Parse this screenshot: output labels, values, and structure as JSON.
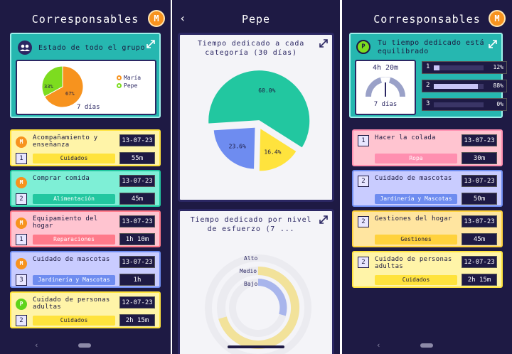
{
  "colors": {
    "background": "#1e1a44",
    "teal": "#26b7b0",
    "orange": "#f7931e",
    "green": "#7ddc1f",
    "yellow": "#fff4a8",
    "mint": "#7eefd6",
    "pink": "#ffc4d0",
    "lavender": "#c9ccff"
  },
  "screen1": {
    "title": "Corresponsables",
    "avatar": "M",
    "summary": {
      "header": "Estado de todo el grupo",
      "icon": "group-icon",
      "legend": [
        {
          "name": "María",
          "color": "#f7931e"
        },
        {
          "name": "Pepe",
          "color": "#7ddc1f"
        }
      ],
      "period": "7 días",
      "pie": {
        "type": "pie",
        "slices": [
          {
            "label": "María",
            "value": 67
          },
          {
            "label": "Pepe",
            "value": 33
          }
        ]
      },
      "slice_labels": [
        "33%",
        "67%"
      ]
    },
    "tasks": [
      {
        "who": "M",
        "who_color": "#f7931e",
        "name": "Acompañamiento y enseñanza",
        "date": "13-07-23",
        "count": "1",
        "category": "Cuidados",
        "cat_color": "#ffe33d",
        "cat_text": "#1c1a40",
        "duration": "55m",
        "bg": "#fff4a8",
        "border": "#ffe33d"
      },
      {
        "who": "M",
        "who_color": "#f7931e",
        "name": "Comprar comida",
        "date": "13-07-23",
        "count": "2",
        "category": "Alimentación",
        "cat_color": "#22c7a0",
        "cat_text": "#ffffff",
        "duration": "45m",
        "bg": "#7eefd6",
        "border": "#22c7a0"
      },
      {
        "who": "M",
        "who_color": "#f7931e",
        "name": "Equipamiento del hogar",
        "date": "13-07-23",
        "count": "1",
        "category": "Reparaciones",
        "cat_color": "#ff7a8a",
        "cat_text": "#ffffff",
        "duration": "1h 10m",
        "bg": "#ffc4d0",
        "border": "#ff7a8a"
      },
      {
        "who": "M",
        "who_color": "#f7931e",
        "name": "Cuidado de mascotas",
        "date": "13-07-23",
        "count": "3",
        "category": "Jardinería y Mascotas",
        "cat_color": "#6e8cf0",
        "cat_text": "#ffffff",
        "duration": "1h",
        "bg": "#c9ccff",
        "border": "#6e8cf0"
      },
      {
        "who": "P",
        "who_color": "#5fd41a",
        "name": "Cuidado de personas adultas",
        "date": "12-07-23",
        "count": "2",
        "category": "Cuidados",
        "cat_color": "#ffe33d",
        "cat_text": "#1c1a40",
        "duration": "2h 15m",
        "bg": "#fff4a8",
        "border": "#ffe33d"
      }
    ]
  },
  "screen2": {
    "title": "Pepe",
    "pie_title": "Tiempo dedicado a cada categoría (30 días)",
    "chart_data": [
      {
        "type": "pie",
        "title": "Tiempo dedicado a cada categoría (30 días)",
        "slices": [
          {
            "value": 60.0,
            "color": "#22c7a0",
            "label": "60.0%"
          },
          {
            "value": 16.4,
            "color": "#ffe33d",
            "label": "16.4%"
          },
          {
            "value": 23.6,
            "color": "#6e8cf0",
            "label": "23.6%"
          }
        ]
      },
      {
        "type": "radial-bar",
        "title": "Tiempo dedicado por nivel de esfuerzo (7 ...",
        "categories": [
          "Alto",
          "Medio",
          "Bajo"
        ]
      }
    ],
    "effort_title": "Tiempo dedicado por nivel de esfuerzo (7 ...",
    "effort_levels": [
      "Alto",
      "Medio",
      "Bajo"
    ]
  },
  "screen3": {
    "title": "Corresponsables",
    "avatar": "M",
    "balance": {
      "badge": "P",
      "header": "Tu tiempo dedicado está equilibrado",
      "time": "4h 20m",
      "period": "7 días",
      "levels": [
        {
          "num": "1",
          "pct": "12%",
          "value": 0.12
        },
        {
          "num": "2",
          "pct": "88%",
          "value": 0.88
        },
        {
          "num": "3",
          "pct": "0%",
          "value": 0
        }
      ]
    },
    "tasks": [
      {
        "name": "Hacer la colada",
        "date": "13-07-23",
        "count": "1",
        "category": "Ropa",
        "cat_color": "#ff8fb0",
        "cat_text": "#ffffff",
        "duration": "30m",
        "bg": "#ffc4d0",
        "border": "#ff8fb0"
      },
      {
        "name": "Cuidado de mascotas",
        "date": "13-07-23",
        "count": "2",
        "category": "Jardinería y Mascotas",
        "cat_color": "#6e8cf0",
        "cat_text": "#ffffff",
        "duration": "50m",
        "bg": "#c9ccff",
        "border": "#6e8cf0"
      },
      {
        "name": "Gestiones del hogar",
        "date": "13-07-23",
        "count": "2",
        "category": "Gestiones",
        "cat_color": "#ffd23d",
        "cat_text": "#1c1a40",
        "duration": "45m",
        "bg": "#ffe5a0",
        "border": "#ffd23d"
      },
      {
        "name": "Cuidado de personas adultas",
        "date": "12-07-23",
        "count": "2",
        "category": "Cuidados",
        "cat_color": "#ffe33d",
        "cat_text": "#1c1a40",
        "duration": "2h 15m",
        "bg": "#fff4a8",
        "border": "#ffe33d"
      }
    ]
  }
}
